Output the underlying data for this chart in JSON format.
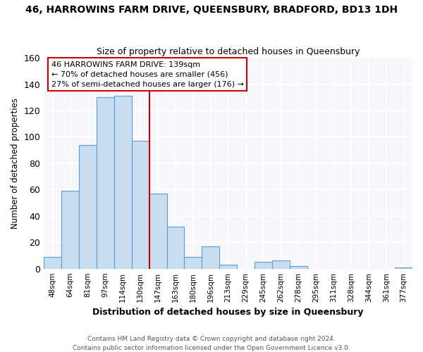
{
  "title": "46, HARROWINS FARM DRIVE, QUEENSBURY, BRADFORD, BD13 1DH",
  "subtitle": "Size of property relative to detached houses in Queensbury",
  "xlabel": "Distribution of detached houses by size in Queensbury",
  "ylabel": "Number of detached properties",
  "bar_labels": [
    "48sqm",
    "64sqm",
    "81sqm",
    "97sqm",
    "114sqm",
    "130sqm",
    "147sqm",
    "163sqm",
    "180sqm",
    "196sqm",
    "213sqm",
    "229sqm",
    "245sqm",
    "262sqm",
    "278sqm",
    "295sqm",
    "311sqm",
    "328sqm",
    "344sqm",
    "361sqm",
    "377sqm"
  ],
  "bar_values": [
    9,
    59,
    94,
    130,
    131,
    97,
    57,
    32,
    9,
    17,
    3,
    0,
    5,
    6,
    2,
    0,
    0,
    0,
    0,
    0,
    1
  ],
  "bar_color": "#c9ddf0",
  "bar_edge_color": "#5b9bd5",
  "vline_color": "#cc0000",
  "annotation_lines": [
    "46 HARROWINS FARM DRIVE: 139sqm",
    "← 70% of detached houses are smaller (456)",
    "27% of semi-detached houses are larger (176) →"
  ],
  "annotation_box_edge": "#cc0000",
  "ylim": [
    0,
    160
  ],
  "yticks": [
    0,
    20,
    40,
    60,
    80,
    100,
    120,
    140,
    160
  ],
  "footer_lines": [
    "Contains HM Land Registry data © Crown copyright and database right 2024.",
    "Contains public sector information licensed under the Open Government Licence v3.0."
  ],
  "bg_color": "#ffffff",
  "plot_bg_color": "#f5f7fb",
  "grid_color": "#ffffff"
}
